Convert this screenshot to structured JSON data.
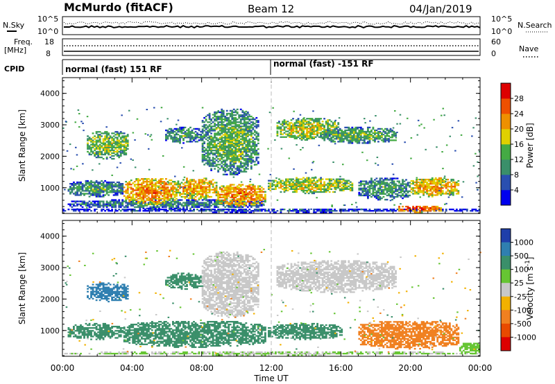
{
  "header": {
    "station": "McMurdo (fitACF)",
    "beam": "Beam 12",
    "date": "04/Jan/2019"
  },
  "top_panels": {
    "nsky_label": "N.Sky",
    "nsky_ticks": [
      "10^5",
      "10^0"
    ],
    "nsearch_label": "N.Search",
    "nsearch_ticks": [
      "10^5",
      "10^0"
    ],
    "freq_label_1": "Freq.",
    "freq_label_2": "[MHz]",
    "freq_ticks": [
      "18",
      "8"
    ],
    "nave_label": "Nave",
    "nave_ticks": [
      "60",
      "0"
    ],
    "cpid_label": "CPID",
    "cpid_segments": [
      {
        "text": "normal (fast) 151 RF",
        "start_hour": 0
      },
      {
        "text": "normal (fast) -151 RF",
        "start_hour": 12
      }
    ]
  },
  "chart_data": [
    {
      "type": "heatmap",
      "title": "",
      "xlabel": "Time UT",
      "ylabel": "Slant Range [km]",
      "xlim": [
        0,
        24
      ],
      "ylim": [
        180,
        4500
      ],
      "x_ticks": [
        "00:00",
        "04:00",
        "08:00",
        "12:00",
        "16:00",
        "20:00",
        "00:00"
      ],
      "y_ticks": [
        1000,
        2000,
        3000,
        4000
      ],
      "colorbar": {
        "label": "Power [dB]",
        "ticks": [
          "4",
          "8",
          "12",
          "16",
          "20",
          "24",
          "28"
        ],
        "range": [
          0,
          30
        ],
        "colors": [
          "#0000ee",
          "#2a4fb0",
          "#3a8f6a",
          "#44aa44",
          "#e0d000",
          "#ee9000",
          "#ee5000",
          "#dd0000"
        ]
      },
      "clusters": [
        {
          "t0": 0.0,
          "t1": 24.0,
          "r0": 200,
          "r1": 320,
          "value": 6
        },
        {
          "t0": 0.3,
          "t1": 11.5,
          "r0": 320,
          "r1": 600,
          "value": 10
        },
        {
          "t0": 0.3,
          "t1": 3.5,
          "r0": 700,
          "r1": 1200,
          "value": 12
        },
        {
          "t0": 3.5,
          "t1": 6.5,
          "r0": 450,
          "r1": 1300,
          "value": 24
        },
        {
          "t0": 6.5,
          "t1": 8.8,
          "r0": 600,
          "r1": 1300,
          "value": 22
        },
        {
          "t0": 8.8,
          "t1": 11.6,
          "r0": 400,
          "r1": 1100,
          "value": 24
        },
        {
          "t0": 1.4,
          "t1": 3.8,
          "r0": 1900,
          "r1": 2800,
          "value": 16
        },
        {
          "t0": 5.9,
          "t1": 8.0,
          "r0": 2400,
          "r1": 2900,
          "value": 12
        },
        {
          "t0": 8.0,
          "t1": 11.2,
          "r0": 1400,
          "r1": 3500,
          "value": 14
        },
        {
          "t0": 11.8,
          "t1": 16.6,
          "r0": 800,
          "r1": 1300,
          "value": 18
        },
        {
          "t0": 12.3,
          "t1": 15.8,
          "r0": 2500,
          "r1": 3200,
          "value": 18
        },
        {
          "t0": 14.8,
          "t1": 19.2,
          "r0": 2400,
          "r1": 2900,
          "value": 14
        },
        {
          "t0": 17.0,
          "t1": 20.0,
          "r0": 600,
          "r1": 1300,
          "value": 12
        },
        {
          "t0": 20.0,
          "t1": 22.8,
          "r0": 700,
          "r1": 1300,
          "value": 22
        },
        {
          "t0": 19.2,
          "t1": 21.8,
          "r0": 200,
          "r1": 420,
          "value": 26
        }
      ]
    },
    {
      "type": "heatmap",
      "title": "",
      "xlabel": "Time UT",
      "ylabel": "Slant Range [km]",
      "xlim": [
        0,
        24
      ],
      "ylim": [
        180,
        4500
      ],
      "x_ticks": [
        "00:00",
        "04:00",
        "08:00",
        "12:00",
        "16:00",
        "20:00",
        "00:00"
      ],
      "y_ticks": [
        1000,
        2000,
        3000,
        4000
      ],
      "colorbar": {
        "label": "Velocity [m s^-1]",
        "ticks": [
          "1000",
          "500",
          "100",
          "25",
          "-25",
          "-100",
          "-500",
          "-1000"
        ],
        "colors": [
          "#1f3faa",
          "#2f7fb0",
          "#3a8f6a",
          "#66c533",
          "#c8c8c8",
          "#f2b100",
          "#f08020",
          "#e84a00",
          "#dd0000"
        ]
      },
      "clusters": [
        {
          "t0": 0.0,
          "t1": 24.0,
          "r0": 200,
          "r1": 300,
          "value": 25
        },
        {
          "t0": 0.3,
          "t1": 3.5,
          "r0": 700,
          "r1": 1200,
          "value": 150
        },
        {
          "t0": 3.5,
          "t1": 11.6,
          "r0": 450,
          "r1": 1300,
          "value": 150
        },
        {
          "t0": 1.4,
          "t1": 3.8,
          "r0": 1900,
          "r1": 2500,
          "value": 700
        },
        {
          "t0": 5.9,
          "t1": 8.0,
          "r0": 2300,
          "r1": 2800,
          "value": 150
        },
        {
          "t0": 8.0,
          "t1": 11.2,
          "r0": 1400,
          "r1": 3500,
          "value": 0
        },
        {
          "t0": 11.8,
          "t1": 16.0,
          "r0": 700,
          "r1": 1200,
          "value": 150
        },
        {
          "t0": 12.3,
          "t1": 19.2,
          "r0": 2200,
          "r1": 3200,
          "value": 0
        },
        {
          "t0": 17.0,
          "t1": 22.8,
          "r0": 400,
          "r1": 1300,
          "value": -400
        },
        {
          "t0": 22.8,
          "t1": 24.0,
          "r0": 250,
          "r1": 600,
          "value": 60
        }
      ]
    }
  ]
}
